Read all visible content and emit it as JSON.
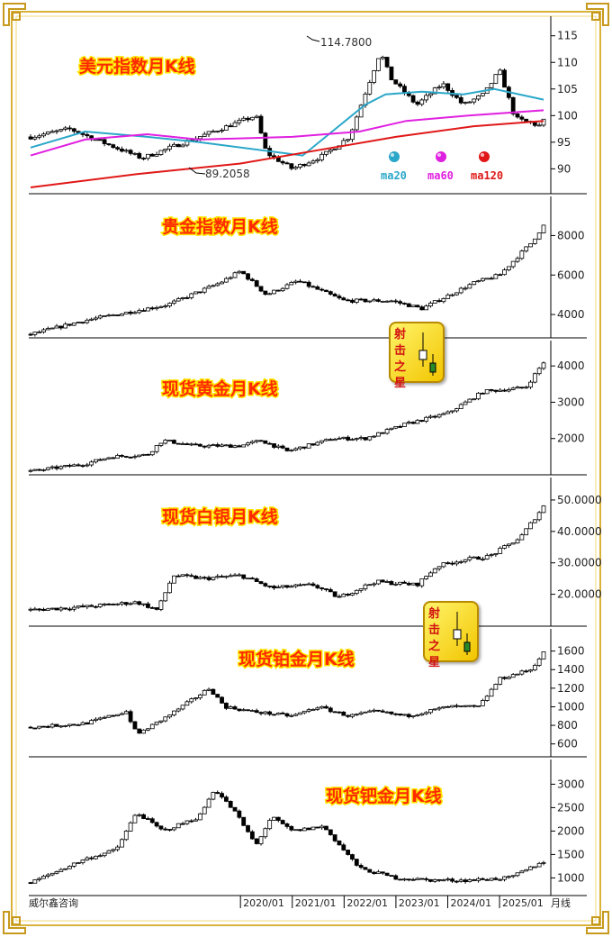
{
  "brand": "威尔鑫咨询",
  "period_label": "月线",
  "x_axis": {
    "labels": [
      "2020/01",
      "2021/01",
      "2022/01",
      "2023/01",
      "2024/01",
      "2025/01"
    ]
  },
  "badge": {
    "text": [
      "射",
      "击",
      "之",
      "星"
    ]
  },
  "colors": {
    "background": "#ffffff",
    "candle": "#000000",
    "ma20": "#2aa7c9",
    "ma60": "#e020e0",
    "ma120": "#e01818",
    "title": "#ff2a00",
    "title_outline": "#ffe600",
    "border_gold": "#d9b23a"
  },
  "chart_data": [
    {
      "type": "candlestick",
      "title": "美元指数月K线",
      "yticks": [
        "115",
        "110",
        "105",
        "100",
        "95",
        "90"
      ],
      "ylim": [
        86,
        118
      ],
      "series": [
        {
          "name": "ma20",
          "color": "#2aa7c9"
        },
        {
          "name": "ma60",
          "color": "#e020e0"
        },
        {
          "name": "ma120",
          "color": "#e01818"
        }
      ],
      "annotations": [
        "114.7800",
        "89.2058"
      ],
      "anchors": [
        {
          "y": 96
        },
        {
          "x": 2016.7,
          "y": 97.5
        },
        {
          "x": 2018.1,
          "y": 92
        },
        {
          "x": 2020.3,
          "y": 100
        },
        {
          "x": 2020.5,
          "y": 93
        },
        {
          "x": 2021.0,
          "y": 90
        },
        {
          "x": 2021.6,
          "y": 92.5
        },
        {
          "x": 2022.1,
          "y": 96
        },
        {
          "x": 2022.7,
          "y": 112
        },
        {
          "x": 2022.9,
          "y": 107
        },
        {
          "x": 2023.4,
          "y": 102
        },
        {
          "x": 2023.9,
          "y": 106
        },
        {
          "x": 2024.3,
          "y": 102
        },
        {
          "x": 2024.7,
          "y": 104
        },
        {
          "x": 2025.0,
          "y": 108.5
        },
        {
          "x": 2025.3,
          "y": 99.5
        },
        {
          "x": 2025.8,
          "y": 98
        },
        {
          "x": 2025.85,
          "y": 99
        }
      ],
      "ma20": [
        {
          "x": 2015.95,
          "y": 94
        },
        {
          "x": 2017.0,
          "y": 97
        },
        {
          "x": 2018.2,
          "y": 96
        },
        {
          "x": 2019.2,
          "y": 95
        },
        {
          "x": 2021.2,
          "y": 92.5
        },
        {
          "x": 2022.4,
          "y": 102
        },
        {
          "x": 2022.8,
          "y": 104
        },
        {
          "x": 2023.5,
          "y": 104.5
        },
        {
          "x": 2024.3,
          "y": 104
        },
        {
          "x": 2024.9,
          "y": 105
        },
        {
          "x": 2025.85,
          "y": 103
        }
      ],
      "ma60": [
        {
          "x": 2015.95,
          "y": 92.5
        },
        {
          "x": 2017.0,
          "y": 95.5
        },
        {
          "x": 2018.2,
          "y": 96.5
        },
        {
          "x": 2019.2,
          "y": 95.5
        },
        {
          "x": 2021.0,
          "y": 96
        },
        {
          "x": 2022.3,
          "y": 97
        },
        {
          "x": 2023.2,
          "y": 99
        },
        {
          "x": 2024.4,
          "y": 100
        },
        {
          "x": 2025.85,
          "y": 101
        }
      ],
      "ma120": [
        {
          "x": 2015.95,
          "y": 86.5
        },
        {
          "x": 2018.0,
          "y": 89
        },
        {
          "x": 2020.0,
          "y": 91
        },
        {
          "x": 2021.5,
          "y": 93.5
        },
        {
          "x": 2023.0,
          "y": 96
        },
        {
          "x": 2024.5,
          "y": 98
        },
        {
          "x": 2025.85,
          "y": 99
        }
      ]
    },
    {
      "type": "candlestick",
      "title": "贵金指数月K线",
      "yticks": [
        "8000",
        "6000",
        "4000"
      ],
      "ylim": [
        3000,
        9800
      ],
      "anchors": [
        {
          "y": 3000
        },
        {
          "x": 2017.0,
          "y": 3700
        },
        {
          "x": 2018.6,
          "y": 4500
        },
        {
          "x": 2019.6,
          "y": 5600
        },
        {
          "x": 2020.0,
          "y": 6200
        },
        {
          "x": 2020.5,
          "y": 5000
        },
        {
          "x": 2021.1,
          "y": 5700
        },
        {
          "x": 2022.0,
          "y": 4700
        },
        {
          "x": 2022.9,
          "y": 4700
        },
        {
          "x": 2023.5,
          "y": 4300
        },
        {
          "x": 2024.5,
          "y": 5600
        },
        {
          "x": 2025.0,
          "y": 6000
        },
        {
          "x": 2025.6,
          "y": 7600
        },
        {
          "x": 2025.85,
          "y": 8500
        }
      ]
    },
    {
      "type": "candlestick",
      "title": "现货黄金月K线",
      "yticks": [
        "4000",
        "3000",
        "2000"
      ],
      "ylim": [
        1100,
        4600
      ],
      "anchors": [
        {
          "y": 1100
        },
        {
          "x": 2017.0,
          "y": 1300
        },
        {
          "x": 2017.5,
          "y": 1500
        },
        {
          "x": 2018.2,
          "y": 1550
        },
        {
          "x": 2018.5,
          "y": 1950
        },
        {
          "x": 2019.1,
          "y": 1800
        },
        {
          "x": 2020.0,
          "y": 1800
        },
        {
          "x": 2020.4,
          "y": 1950
        },
        {
          "x": 2020.9,
          "y": 1650
        },
        {
          "x": 2021.8,
          "y": 2000
        },
        {
          "x": 2022.4,
          "y": 2000
        },
        {
          "x": 2023.2,
          "y": 2400
        },
        {
          "x": 2024.0,
          "y": 2700
        },
        {
          "x": 2024.7,
          "y": 3300
        },
        {
          "x": 2025.5,
          "y": 3400
        },
        {
          "x": 2025.85,
          "y": 4100
        }
      ]
    },
    {
      "type": "candlestick",
      "title": "现货白银月K线",
      "yticks": [
        "50.0000",
        "40.0000",
        "30.0000",
        "20.0000"
      ],
      "ylim": [
        11,
        56
      ],
      "anchors": [
        {
          "y": 15
        },
        {
          "x": 2017.0,
          "y": 16
        },
        {
          "x": 2018.0,
          "y": 17.5
        },
        {
          "x": 2018.4,
          "y": 15
        },
        {
          "x": 2018.7,
          "y": 26
        },
        {
          "x": 2019.3,
          "y": 25
        },
        {
          "x": 2020.0,
          "y": 26
        },
        {
          "x": 2020.6,
          "y": 22
        },
        {
          "x": 2021.4,
          "y": 23
        },
        {
          "x": 2021.9,
          "y": 19
        },
        {
          "x": 2022.6,
          "y": 24
        },
        {
          "x": 2023.4,
          "y": 23
        },
        {
          "x": 2023.8,
          "y": 29
        },
        {
          "x": 2024.3,
          "y": 31
        },
        {
          "x": 2024.8,
          "y": 32
        },
        {
          "x": 2025.4,
          "y": 38
        },
        {
          "x": 2025.85,
          "y": 48
        }
      ]
    },
    {
      "type": "candlestick",
      "title": "现货铂金月K线",
      "yticks": [
        "1600",
        "1400",
        "1200",
        "1000",
        "800",
        "600"
      ],
      "ylim": [
        500,
        1800
      ],
      "anchors": [
        {
          "y": 780
        },
        {
          "x": 2017.0,
          "y": 820
        },
        {
          "x": 2017.8,
          "y": 950
        },
        {
          "x": 2018.0,
          "y": 700
        },
        {
          "x": 2018.6,
          "y": 900
        },
        {
          "x": 2019.0,
          "y": 1050
        },
        {
          "x": 2019.4,
          "y": 1200
        },
        {
          "x": 2019.7,
          "y": 1000
        },
        {
          "x": 2020.2,
          "y": 950
        },
        {
          "x": 2021.0,
          "y": 900
        },
        {
          "x": 2021.5,
          "y": 1000
        },
        {
          "x": 2022.1,
          "y": 900
        },
        {
          "x": 2022.6,
          "y": 950
        },
        {
          "x": 2023.2,
          "y": 900
        },
        {
          "x": 2024.0,
          "y": 1000
        },
        {
          "x": 2024.6,
          "y": 1000
        },
        {
          "x": 2025.0,
          "y": 1300
        },
        {
          "x": 2025.6,
          "y": 1400
        },
        {
          "x": 2025.85,
          "y": 1580
        }
      ]
    },
    {
      "type": "candlestick",
      "title": "现货钯金月K线",
      "yticks": [
        "3000",
        "2500",
        "2000",
        "1500",
        "1000"
      ],
      "ylim": [
        700,
        3450
      ],
      "anchors": [
        {
          "y": 900
        },
        {
          "x": 2017.0,
          "y": 1400
        },
        {
          "x": 2017.6,
          "y": 1600
        },
        {
          "x": 2018.0,
          "y": 2400
        },
        {
          "x": 2018.5,
          "y": 2000
        },
        {
          "x": 2019.2,
          "y": 2300
        },
        {
          "x": 2019.5,
          "y": 2900
        },
        {
          "x": 2019.9,
          "y": 2400
        },
        {
          "x": 2020.3,
          "y": 1700
        },
        {
          "x": 2020.6,
          "y": 2300
        },
        {
          "x": 2021.0,
          "y": 2000
        },
        {
          "x": 2021.6,
          "y": 2100
        },
        {
          "x": 2022.3,
          "y": 1200
        },
        {
          "x": 2023.0,
          "y": 1000
        },
        {
          "x": 2023.7,
          "y": 950
        },
        {
          "x": 2024.4,
          "y": 950
        },
        {
          "x": 2025.2,
          "y": 1000
        },
        {
          "x": 2025.85,
          "y": 1350
        }
      ]
    }
  ]
}
